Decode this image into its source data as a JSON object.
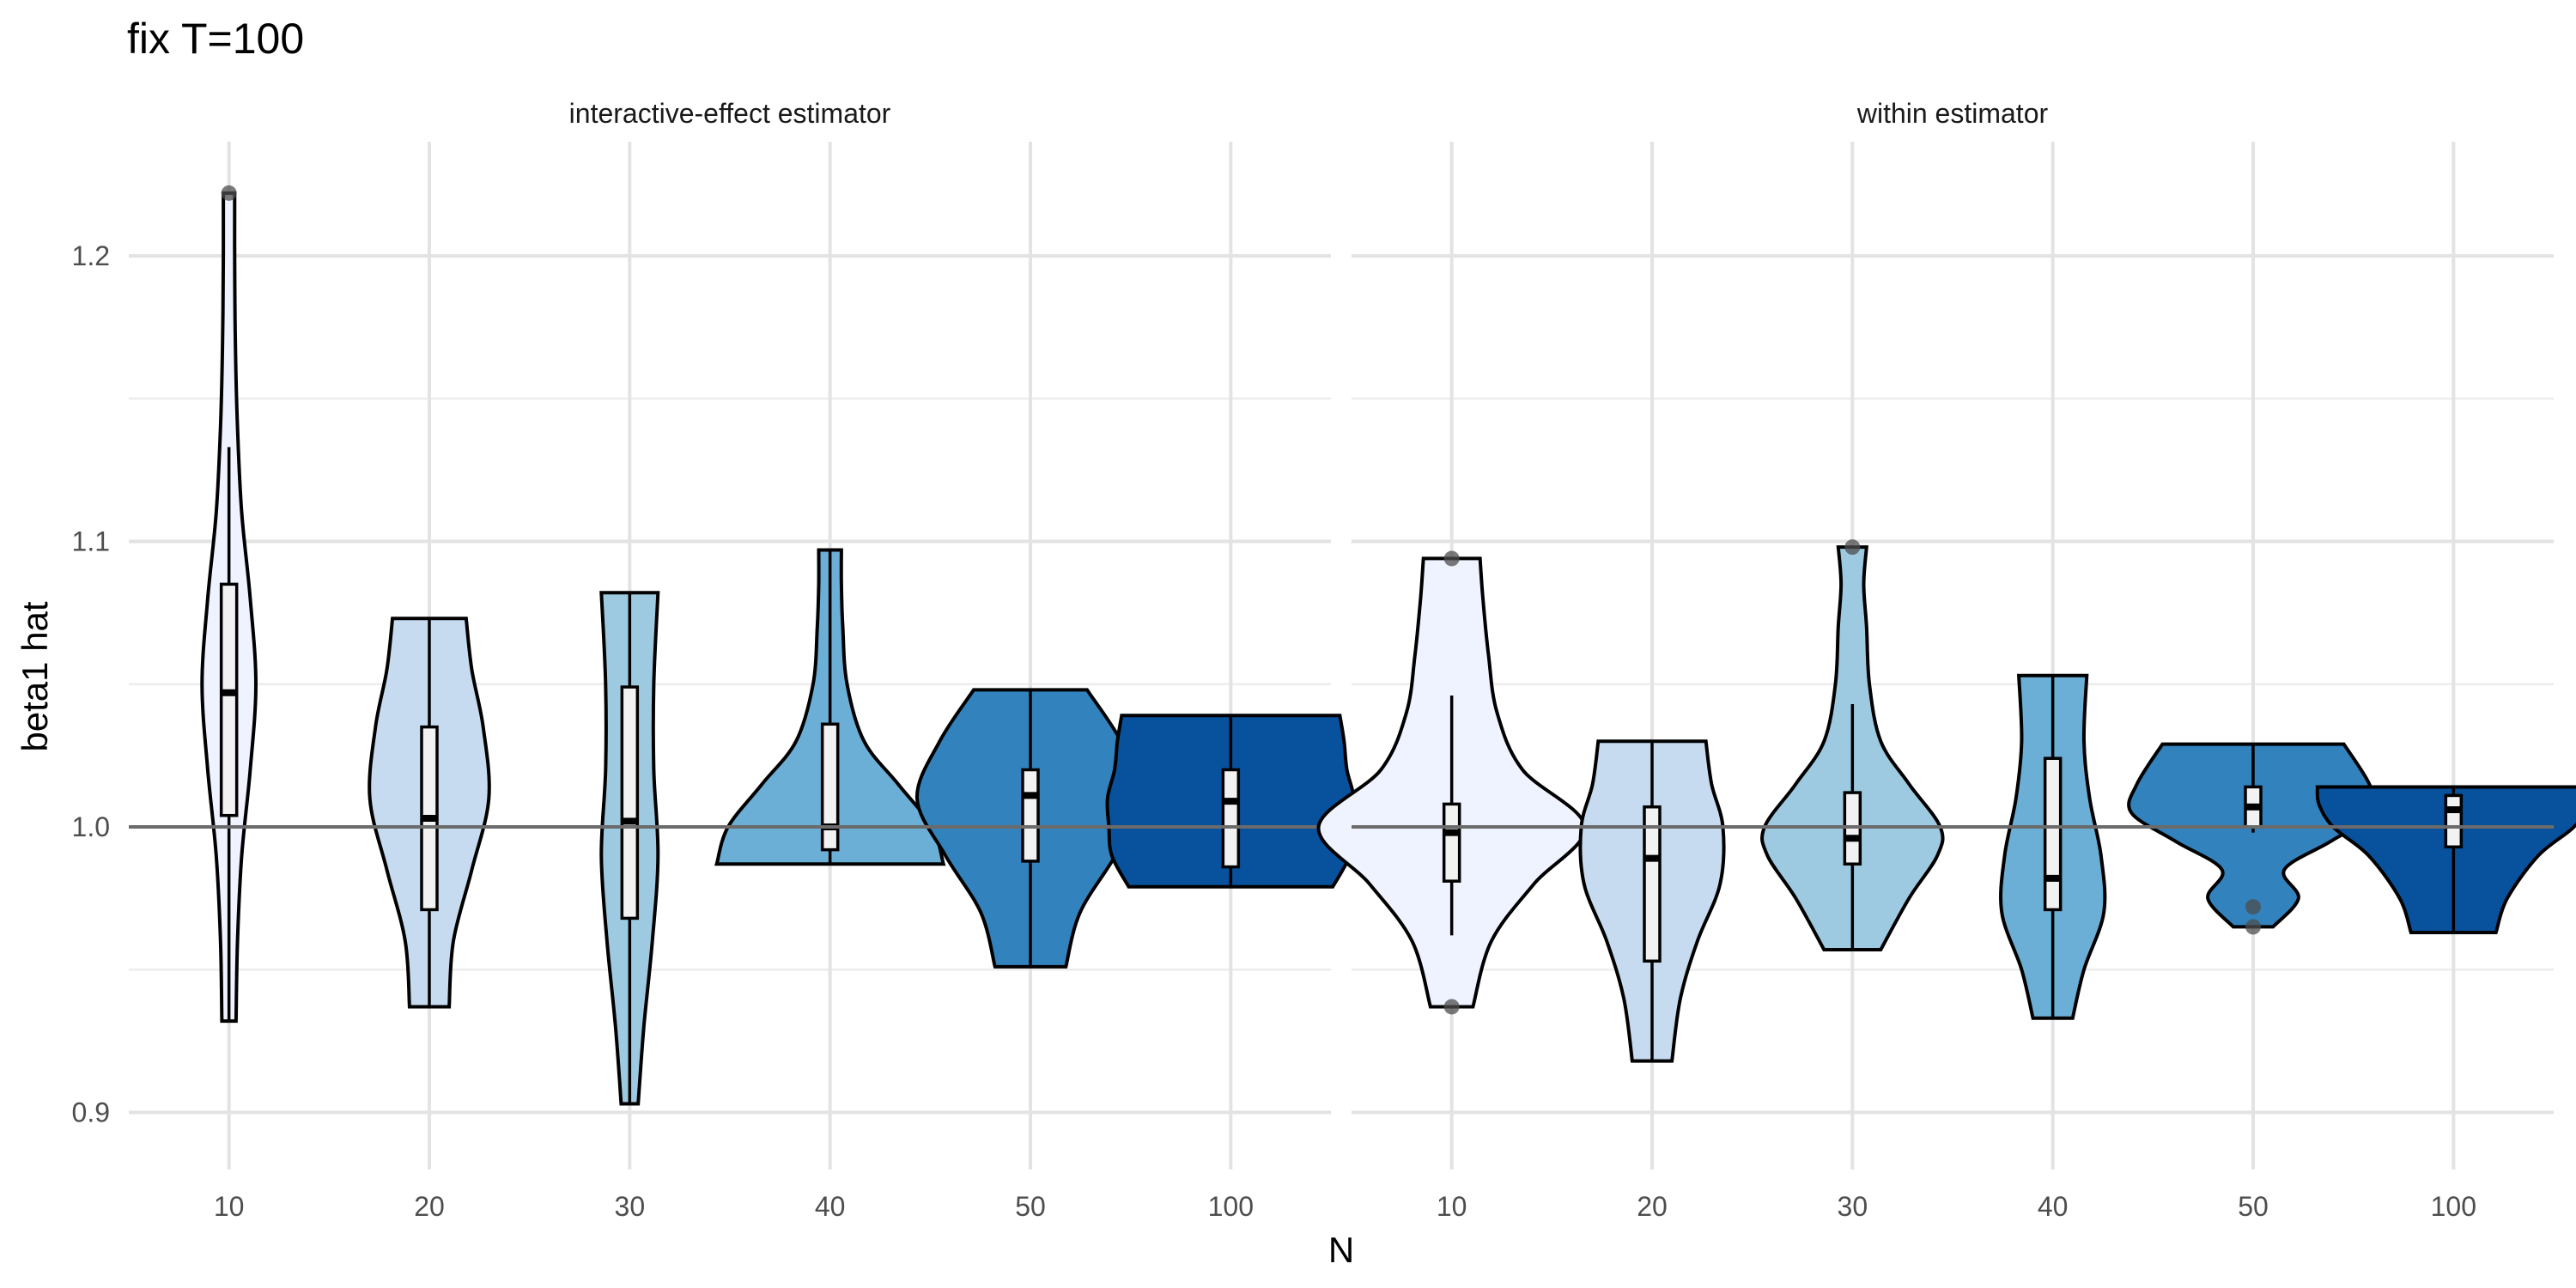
{
  "chart_data": {
    "type": "violin",
    "title": "fix T=100",
    "xlabel": "N",
    "ylabel": "beta1 hat",
    "categories": [
      "10",
      "20",
      "30",
      "40",
      "50",
      "100"
    ],
    "ylim": [
      0.88,
      1.24
    ],
    "yticks": [
      0.9,
      1.0,
      1.1,
      1.2
    ],
    "yticklabels": [
      "0.9",
      "1.0",
      "1.1",
      "1.2"
    ],
    "reference_line": 1.0,
    "grid": true,
    "fill_colors": [
      "#eff3ff",
      "#c6dbef",
      "#9ecae1",
      "#6baed6",
      "#3182bd",
      "#08519c"
    ],
    "panels": [
      {
        "name": "interactive-effect estimator",
        "groups": [
          {
            "n": "10",
            "min": 0.932,
            "max": 1.222,
            "q1": 1.004,
            "median": 1.047,
            "q3": 1.085,
            "whisker_low": 0.932,
            "whisker_high": 1.133,
            "outliers": [
              1.222
            ],
            "density": [
              [
                0.932,
                0.05
              ],
              [
                0.96,
                0.06
              ],
              [
                0.99,
                0.09
              ],
              [
                1.02,
                0.15
              ],
              [
                1.05,
                0.19
              ],
              [
                1.08,
                0.15
              ],
              [
                1.11,
                0.09
              ],
              [
                1.14,
                0.06
              ],
              [
                1.17,
                0.045
              ],
              [
                1.2,
                0.04
              ],
              [
                1.222,
                0.04
              ]
            ]
          },
          {
            "n": "20",
            "min": 0.937,
            "max": 1.073,
            "q1": 0.971,
            "median": 1.003,
            "q3": 1.035,
            "whisker_low": 0.937,
            "whisker_high": 1.073,
            "outliers": [],
            "density": [
              [
                0.937,
                0.14
              ],
              [
                0.96,
                0.17
              ],
              [
                0.985,
                0.3
              ],
              [
                1.01,
                0.42
              ],
              [
                1.035,
                0.38
              ],
              [
                1.055,
                0.3
              ],
              [
                1.073,
                0.26
              ]
            ]
          },
          {
            "n": "30",
            "min": 0.903,
            "max": 1.082,
            "q1": 0.968,
            "median": 1.002,
            "q3": 1.049,
            "whisker_low": 0.903,
            "whisker_high": 1.082,
            "outliers": [],
            "density": [
              [
                0.903,
                0.06
              ],
              [
                0.93,
                0.1
              ],
              [
                0.96,
                0.16
              ],
              [
                0.99,
                0.2
              ],
              [
                1.02,
                0.17
              ],
              [
                1.05,
                0.17
              ],
              [
                1.082,
                0.2
              ]
            ]
          },
          {
            "n": "40",
            "min": 0.987,
            "max": 1.097,
            "q1": 0.992,
            "median": 1.0,
            "q3": 1.036,
            "whisker_low": 0.987,
            "whisker_high": 1.097,
            "outliers": [],
            "density": [
              [
                0.987,
                0.8
              ],
              [
                1.0,
                0.72
              ],
              [
                1.015,
                0.48
              ],
              [
                1.03,
                0.24
              ],
              [
                1.05,
                0.12
              ],
              [
                1.07,
                0.09
              ],
              [
                1.085,
                0.08
              ],
              [
                1.097,
                0.08
              ]
            ]
          },
          {
            "n": "50",
            "min": 0.951,
            "max": 1.048,
            "q1": 0.988,
            "median": 1.011,
            "q3": 1.02,
            "whisker_low": 0.951,
            "whisker_high": 1.048,
            "outliers": [],
            "density": [
              [
                0.951,
                0.25
              ],
              [
                0.97,
                0.35
              ],
              [
                0.99,
                0.6
              ],
              [
                1.01,
                0.8
              ],
              [
                1.03,
                0.64
              ],
              [
                1.048,
                0.4
              ]
            ]
          },
          {
            "n": "100",
            "min": 0.979,
            "max": 1.039,
            "q1": 0.986,
            "median": 1.009,
            "q3": 1.02,
            "whisker_low": 0.979,
            "whisker_high": 1.039,
            "outliers": [],
            "density": [
              [
                0.979,
                0.72
              ],
              [
                0.99,
                0.84
              ],
              [
                1.0,
                0.86
              ],
              [
                1.01,
                0.87
              ],
              [
                1.02,
                0.82
              ],
              [
                1.03,
                0.8
              ],
              [
                1.039,
                0.77
              ]
            ]
          }
        ]
      },
      {
        "name": "within estimator",
        "groups": [
          {
            "n": "10",
            "min": 0.937,
            "max": 1.094,
            "q1": 0.981,
            "median": 0.998,
            "q3": 1.008,
            "whisker_low": 0.962,
            "whisker_high": 1.046,
            "outliers": [
              0.937,
              1.094
            ],
            "density": [
              [
                0.937,
                0.15
              ],
              [
                0.96,
                0.28
              ],
              [
                0.98,
                0.58
              ],
              [
                1.0,
                0.94
              ],
              [
                1.02,
                0.5
              ],
              [
                1.04,
                0.32
              ],
              [
                1.06,
                0.26
              ],
              [
                1.08,
                0.22
              ],
              [
                1.094,
                0.2
              ]
            ]
          },
          {
            "n": "20",
            "min": 0.918,
            "max": 1.03,
            "q1": 0.953,
            "median": 0.989,
            "q3": 1.007,
            "whisker_low": 0.918,
            "whisker_high": 1.03,
            "outliers": [],
            "density": [
              [
                0.918,
                0.14
              ],
              [
                0.94,
                0.2
              ],
              [
                0.96,
                0.32
              ],
              [
                0.98,
                0.48
              ],
              [
                1.0,
                0.5
              ],
              [
                1.015,
                0.42
              ],
              [
                1.03,
                0.38
              ]
            ]
          },
          {
            "n": "30",
            "min": 0.957,
            "max": 1.098,
            "q1": 0.987,
            "median": 0.996,
            "q3": 1.012,
            "whisker_low": 0.957,
            "whisker_high": 1.043,
            "outliers": [
              1.098
            ],
            "density": [
              [
                0.957,
                0.2
              ],
              [
                0.975,
                0.4
              ],
              [
                0.99,
                0.6
              ],
              [
                1.0,
                0.62
              ],
              [
                1.015,
                0.4
              ],
              [
                1.03,
                0.2
              ],
              [
                1.05,
                0.12
              ],
              [
                1.07,
                0.1
              ],
              [
                1.085,
                0.08
              ],
              [
                1.098,
                0.1
              ]
            ]
          },
          {
            "n": "40",
            "min": 0.933,
            "max": 1.053,
            "q1": 0.971,
            "median": 0.982,
            "q3": 1.024,
            "whisker_low": 0.933,
            "whisker_high": 1.053,
            "outliers": [],
            "density": [
              [
                0.933,
                0.14
              ],
              [
                0.95,
                0.22
              ],
              [
                0.97,
                0.36
              ],
              [
                0.99,
                0.34
              ],
              [
                1.01,
                0.26
              ],
              [
                1.03,
                0.22
              ],
              [
                1.053,
                0.24
              ]
            ]
          },
          {
            "n": "50",
            "min": 0.965,
            "max": 1.029,
            "q1": 1.0,
            "median": 1.007,
            "q3": 1.014,
            "whisker_low": 0.998,
            "whisker_high": 1.029,
            "outliers": [
              0.965,
              0.972
            ],
            "density": [
              [
                0.965,
                0.14
              ],
              [
                0.975,
                0.32
              ],
              [
                0.985,
                0.22
              ],
              [
                0.995,
                0.55
              ],
              [
                1.005,
                0.86
              ],
              [
                1.015,
                0.82
              ],
              [
                1.029,
                0.64
              ]
            ]
          },
          {
            "n": "100",
            "min": 0.963,
            "max": 1.014,
            "q1": 0.993,
            "median": 1.006,
            "q3": 1.011,
            "whisker_low": 0.963,
            "whisker_high": 1.014,
            "outliers": [],
            "density": [
              [
                0.963,
                0.3
              ],
              [
                0.975,
                0.38
              ],
              [
                0.99,
                0.6
              ],
              [
                1.0,
                0.85
              ],
              [
                1.008,
                0.95
              ],
              [
                1.014,
                0.96
              ]
            ]
          }
        ]
      }
    ]
  }
}
